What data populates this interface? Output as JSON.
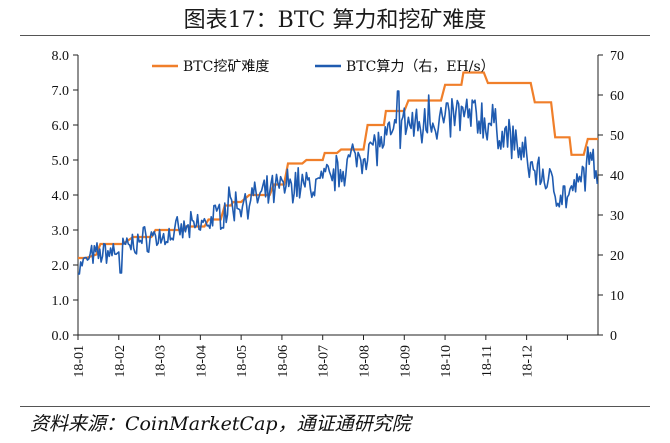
{
  "title": "图表17：BTC 算力和挖矿难度",
  "source": "资料来源：CoinMarketCap，通证通研究院",
  "chart_data": {
    "type": "line",
    "x_tick_labels": [
      "18-01",
      "18-02",
      "18-03",
      "18-04",
      "18-05",
      "18-06",
      "18-07",
      "18-08",
      "18-09",
      "18-10",
      "18-11",
      "18-12"
    ],
    "y_left_ticks": [
      "0.0",
      "1.0",
      "2.0",
      "3.0",
      "4.0",
      "5.0",
      "6.0",
      "7.0",
      "8.0"
    ],
    "y_right_ticks": [
      "0",
      "10",
      "20",
      "30",
      "40",
      "50",
      "60",
      "70"
    ],
    "y_left_range": [
      0,
      8
    ],
    "y_right_range": [
      0,
      70
    ],
    "x_range_months": [
      0,
      12
    ],
    "series": [
      {
        "name": "BTC挖矿难度",
        "axis": "left",
        "color": "#f07f2a",
        "step": true,
        "points": [
          [
            0.0,
            2.2
          ],
          [
            0.2,
            2.2
          ],
          [
            0.45,
            2.3
          ],
          [
            0.55,
            2.6
          ],
          [
            1.1,
            2.6
          ],
          [
            1.35,
            2.8
          ],
          [
            1.8,
            2.8
          ],
          [
            1.9,
            3.0
          ],
          [
            2.6,
            3.0
          ],
          [
            2.65,
            3.1
          ],
          [
            3.1,
            3.1
          ],
          [
            3.2,
            3.3
          ],
          [
            3.5,
            3.3
          ],
          [
            3.6,
            3.7
          ],
          [
            3.75,
            3.7
          ],
          [
            3.8,
            3.8
          ],
          [
            4.0,
            3.8
          ],
          [
            4.2,
            4.0
          ],
          [
            4.7,
            4.0
          ],
          [
            4.8,
            4.3
          ],
          [
            5.05,
            4.3
          ],
          [
            5.15,
            4.9
          ],
          [
            5.5,
            4.9
          ],
          [
            5.6,
            5.0
          ],
          [
            6.0,
            5.0
          ],
          [
            6.05,
            5.2
          ],
          [
            6.35,
            5.2
          ],
          [
            6.45,
            5.3
          ],
          [
            7.0,
            5.3
          ],
          [
            7.1,
            6.0
          ],
          [
            7.5,
            6.0
          ],
          [
            7.55,
            6.4
          ],
          [
            8.0,
            6.4
          ],
          [
            8.1,
            6.7
          ],
          [
            8.9,
            6.7
          ],
          [
            9.0,
            7.15
          ],
          [
            9.4,
            7.15
          ],
          [
            9.45,
            7.5
          ],
          [
            9.95,
            7.5
          ],
          [
            10.05,
            7.2
          ],
          [
            11.1,
            7.2
          ],
          [
            11.2,
            6.65
          ],
          [
            11.6,
            6.65
          ],
          [
            11.7,
            5.65
          ],
          [
            12.05,
            5.65
          ],
          [
            12.1,
            5.15
          ],
          [
            12.4,
            5.15
          ],
          [
            12.5,
            5.6
          ],
          [
            12.75,
            5.6
          ]
        ]
      },
      {
        "name": "BTC算力（右，EH/s）",
        "axis": "right",
        "color": "#1f5bb0",
        "anchors": [
          [
            0.0,
            16.5
          ],
          [
            0.3,
            19.5
          ],
          [
            0.6,
            20.5
          ],
          [
            0.9,
            21.0
          ],
          [
            1.1,
            22.0
          ],
          [
            1.3,
            22.5
          ],
          [
            1.5,
            23.5
          ],
          [
            1.8,
            24.5
          ],
          [
            2.1,
            24.5
          ],
          [
            2.4,
            25.5
          ],
          [
            2.7,
            26.5
          ],
          [
            3.0,
            27.5
          ],
          [
            3.3,
            29.0
          ],
          [
            3.6,
            31.0
          ],
          [
            3.9,
            32.5
          ],
          [
            4.2,
            34.0
          ],
          [
            4.5,
            34.5
          ],
          [
            4.8,
            36.0
          ],
          [
            5.1,
            37.5
          ],
          [
            5.4,
            38.0
          ],
          [
            5.7,
            37.0
          ],
          [
            6.0,
            38.5
          ],
          [
            6.3,
            40.0
          ],
          [
            6.6,
            43.0
          ],
          [
            6.9,
            45.0
          ],
          [
            7.2,
            47.0
          ],
          [
            7.5,
            48.0
          ],
          [
            7.8,
            50.5
          ],
          [
            8.1,
            53.0
          ],
          [
            8.4,
            52.0
          ],
          [
            8.7,
            54.0
          ],
          [
            9.0,
            53.0
          ],
          [
            9.3,
            55.0
          ],
          [
            9.6,
            55.0
          ],
          [
            9.9,
            54.0
          ],
          [
            10.2,
            52.0
          ],
          [
            10.5,
            50.0
          ],
          [
            10.8,
            47.0
          ],
          [
            11.1,
            42.0
          ],
          [
            11.4,
            40.0
          ],
          [
            11.6,
            37.5
          ],
          [
            11.8,
            35.5
          ],
          [
            12.0,
            34.5
          ],
          [
            12.2,
            36.0
          ],
          [
            12.4,
            40.0
          ],
          [
            12.6,
            42.0
          ],
          [
            12.75,
            41.0
          ]
        ],
        "spikes": [
          [
            1.05,
            15.5
          ],
          [
            3.7,
            37.0
          ],
          [
            7.85,
            61.0
          ],
          [
            8.6,
            60.0
          ],
          [
            9.05,
            58.0
          ],
          [
            9.5,
            56.5
          ],
          [
            12.5,
            47.0
          ]
        ]
      }
    ],
    "legend_position": "top"
  }
}
